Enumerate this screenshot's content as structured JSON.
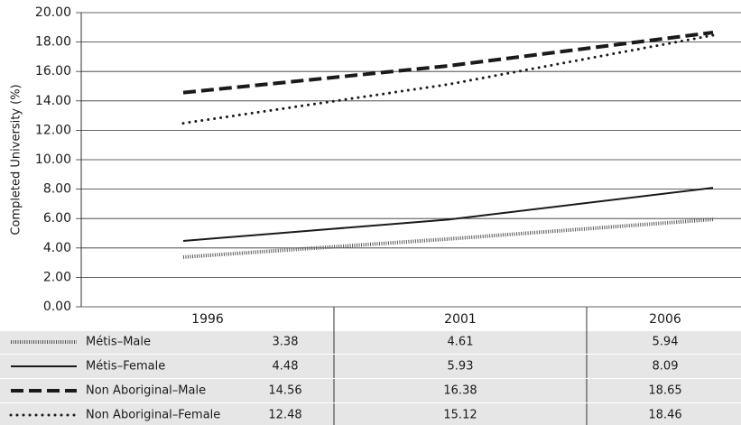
{
  "chart_data": {
    "type": "line",
    "y_label": "Completed University (%)",
    "x": [
      1996,
      2001,
      2006
    ],
    "ylim": [
      0,
      20
    ],
    "yticks": [
      {
        "value": 0,
        "label": "0.00"
      },
      {
        "value": 2,
        "label": "2.00"
      },
      {
        "value": 4,
        "label": "4.00"
      },
      {
        "value": 6,
        "label": "6.00"
      },
      {
        "value": 8,
        "label": "8.00"
      },
      {
        "value": 10,
        "label": "10.00"
      },
      {
        "value": 12,
        "label": "12.00"
      },
      {
        "value": 14,
        "label": "14.00"
      },
      {
        "value": 16,
        "label": "16.00"
      },
      {
        "value": 18,
        "label": "18.00"
      },
      {
        "value": 20,
        "label": "20.00"
      }
    ],
    "grid": true,
    "series": [
      {
        "name": "Métis–Male",
        "color": "#555555",
        "style": "hatched",
        "values": [
          3.38,
          4.61,
          5.94
        ]
      },
      {
        "name": "Métis–Female",
        "color": "#1a1a1a",
        "style": "solid",
        "values": [
          4.48,
          5.93,
          8.09
        ]
      },
      {
        "name": "Non Aboriginal–Male",
        "color": "#1a1a1a",
        "style": "dashed",
        "values": [
          14.56,
          16.38,
          18.65
        ]
      },
      {
        "name": "Non Aboriginal–Female",
        "color": "#1a1a1a",
        "style": "dotted",
        "values": [
          12.48,
          15.12,
          18.46
        ]
      }
    ]
  }
}
